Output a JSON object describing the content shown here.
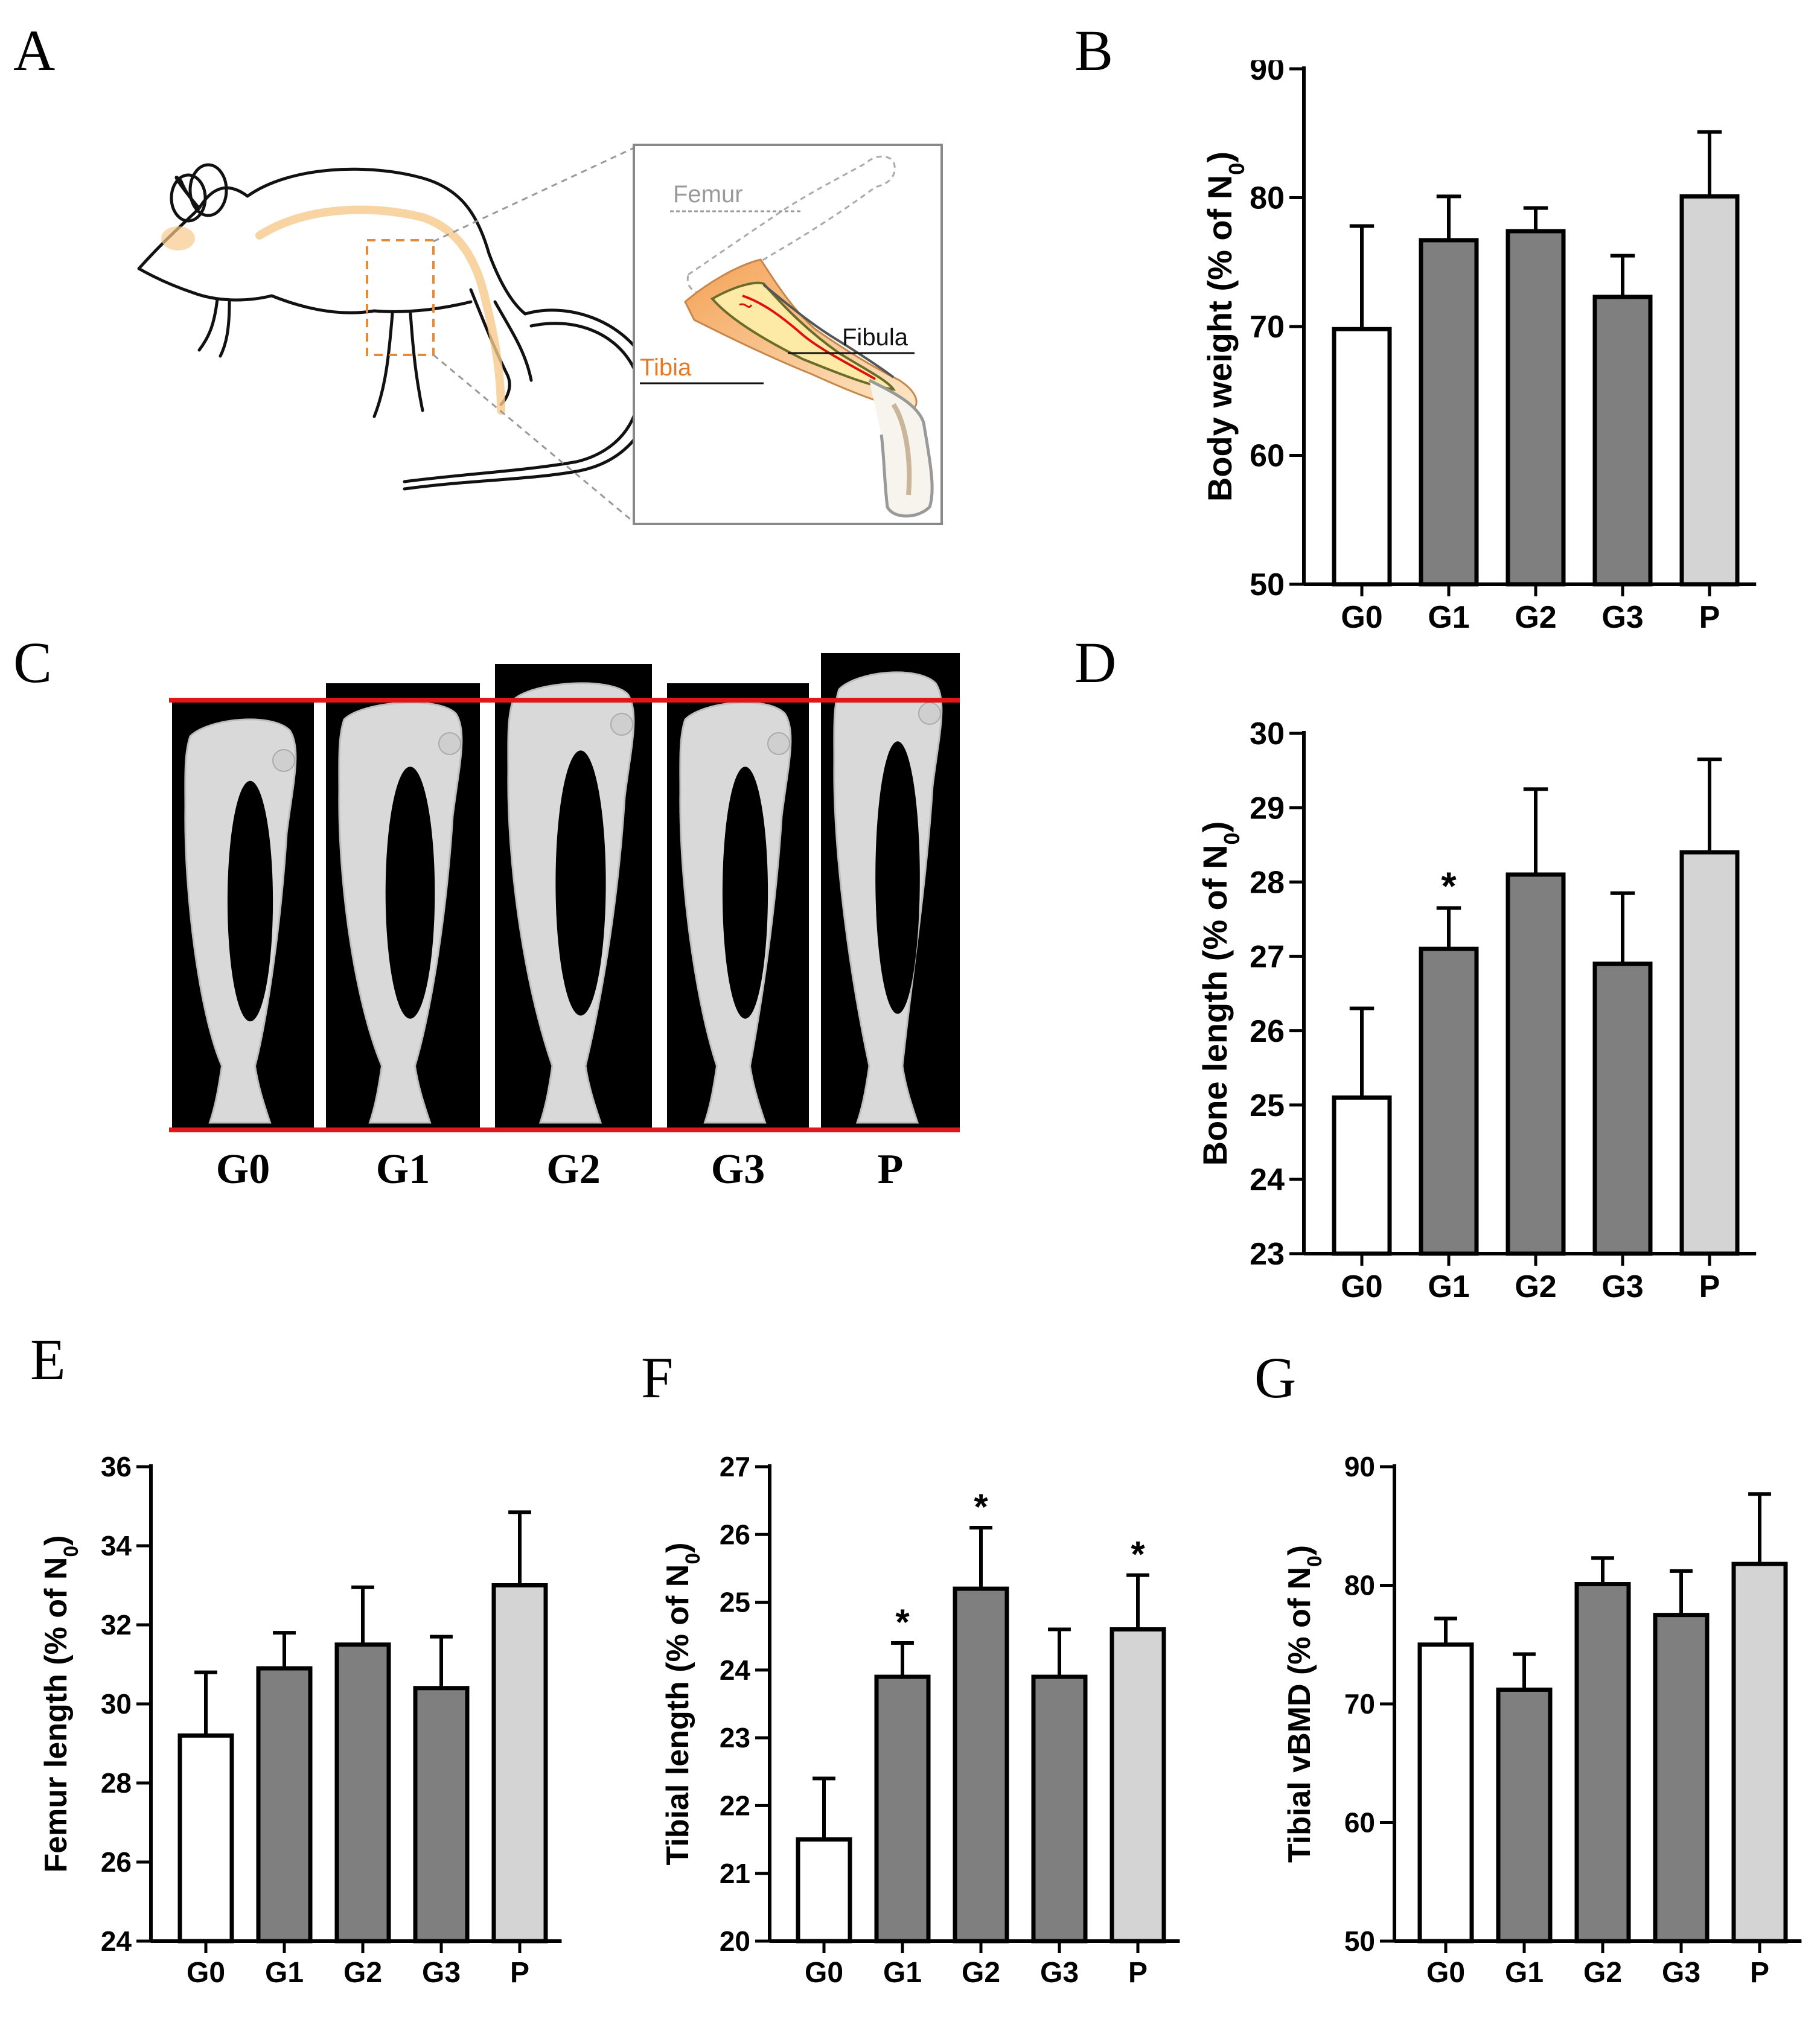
{
  "panels": {
    "A": "A",
    "B": "B",
    "C": "C",
    "D": "D",
    "E": "E",
    "F": "F",
    "G": "G"
  },
  "diagram": {
    "femur_label": "Femur",
    "tibia_label": "Tibia",
    "fibula_label": "Fibula"
  },
  "bone_panel": {
    "groups": [
      "G0",
      "G1",
      "G2",
      "G3",
      "P"
    ],
    "reference_line_color": "#e0161b"
  },
  "colors": {
    "G0": "#ffffff",
    "G1": "#7f7f7f",
    "G2": "#7f7f7f",
    "G3": "#7f7f7f",
    "P": "#d4d4d4",
    "stroke": "#000000"
  },
  "chart_data": [
    {
      "panel": "B",
      "type": "bar",
      "categories": [
        "G0",
        "G1",
        "G2",
        "G3",
        "P"
      ],
      "values": [
        69.8,
        76.7,
        77.4,
        72.3,
        80.1
      ],
      "errors": [
        8.0,
        3.4,
        1.8,
        3.2,
        5.0
      ],
      "significance": [
        "",
        "",
        "",
        "",
        ""
      ],
      "ylabel": "Body weight (% of N",
      "ylabel_sub": "0",
      "ylabel_end": ")",
      "ylim": [
        50,
        90
      ],
      "yticks": [
        50,
        60,
        70,
        80,
        90
      ]
    },
    {
      "panel": "D",
      "type": "bar",
      "categories": [
        "G0",
        "G1",
        "G2",
        "G3",
        "P"
      ],
      "values": [
        25.1,
        27.1,
        28.1,
        26.9,
        28.4
      ],
      "errors": [
        1.2,
        0.55,
        1.15,
        0.95,
        1.25
      ],
      "significance": [
        "",
        "*",
        "",
        "",
        ""
      ],
      "ylabel": "Bone length (% of N",
      "ylabel_sub": "0",
      "ylabel_end": ")",
      "ylim": [
        23,
        30
      ],
      "yticks": [
        23,
        24,
        25,
        26,
        27,
        28,
        29,
        30
      ]
    },
    {
      "panel": "E",
      "type": "bar",
      "categories": [
        "G0",
        "G1",
        "G2",
        "G3",
        "P"
      ],
      "values": [
        29.2,
        30.9,
        31.5,
        30.4,
        33.0
      ],
      "errors": [
        1.6,
        0.9,
        1.45,
        1.3,
        1.85
      ],
      "significance": [
        "",
        "",
        "",
        "",
        ""
      ],
      "ylabel": "Femur length (% of N",
      "ylabel_sub": "0",
      "ylabel_end": ")",
      "ylim": [
        24,
        36
      ],
      "yticks": [
        24,
        26,
        28,
        30,
        32,
        34,
        36
      ]
    },
    {
      "panel": "F",
      "type": "bar",
      "categories": [
        "G0",
        "G1",
        "G2",
        "G3",
        "P"
      ],
      "values": [
        21.5,
        23.9,
        25.2,
        23.9,
        24.6
      ],
      "errors": [
        0.9,
        0.5,
        0.9,
        0.7,
        0.8
      ],
      "significance": [
        "",
        "*",
        "*",
        "",
        "*"
      ],
      "ylabel": "Tibial length (% of N",
      "ylabel_sub": "0",
      "ylabel_end": ")",
      "ylim": [
        20,
        27
      ],
      "yticks": [
        20,
        21,
        22,
        23,
        24,
        25,
        26,
        27
      ]
    },
    {
      "panel": "G",
      "type": "bar",
      "categories": [
        "G0",
        "G1",
        "G2",
        "G3",
        "P"
      ],
      "values": [
        75.0,
        71.2,
        80.1,
        77.5,
        81.8
      ],
      "errors": [
        2.2,
        3.0,
        2.2,
        3.7,
        5.9
      ],
      "significance": [
        "",
        "",
        "",
        "",
        ""
      ],
      "ylabel": "Tibial vBMD (% of N",
      "ylabel_sub": "0",
      "ylabel_end": ")",
      "ylim": [
        50,
        90
      ],
      "yticks": [
        50,
        60,
        70,
        80,
        90
      ]
    }
  ]
}
